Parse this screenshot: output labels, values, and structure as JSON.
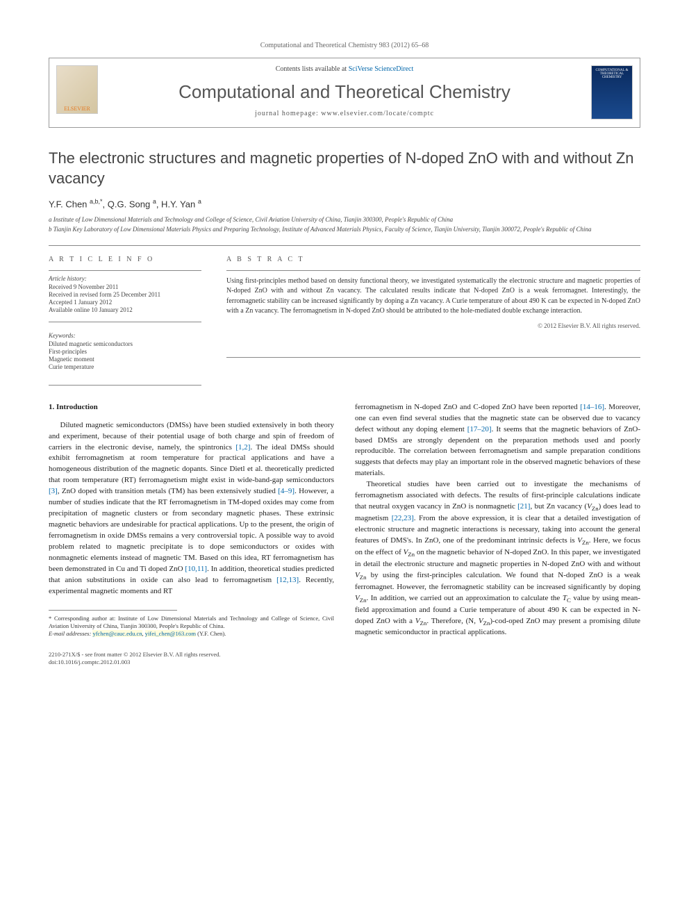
{
  "running_head": "Computational and Theoretical Chemistry 983 (2012) 65–68",
  "header": {
    "contents_prefix": "Contents lists available at ",
    "contents_link": "SciVerse ScienceDirect",
    "journal_title": "Computational and Theoretical Chemistry",
    "homepage_label": "journal homepage: ",
    "homepage_url": "www.elsevier.com/locate/comptc",
    "publisher_logo": "ELSEVIER",
    "cover_text": "COMPUTATIONAL & THEORETICAL CHEMISTRY"
  },
  "article": {
    "title": "The electronic structures and magnetic properties of N-doped ZnO with and without Zn vacancy",
    "authors_html": "Y.F. Chen <sup>a,b,*</sup>, Q.G. Song <sup>a</sup>, H.Y. Yan <sup>a</sup>",
    "affiliations": [
      "a Institute of Low Dimensional Materials and Technology and College of Science, Civil Aviation University of China, Tianjin 300300, People's Republic of China",
      "b Tianjin Key Laboratory of Low Dimensional Materials Physics and Preparing Technology, Institute of Advanced Materials Physics, Faculty of Science, Tianjin University, Tianjin 300072, People's Republic of China"
    ]
  },
  "info": {
    "article_info_heading": "A R T I C L E   I N F O",
    "history_label": "Article history:",
    "history": [
      "Received 9 November 2011",
      "Received in revised form 25 December 2011",
      "Accepted 1 January 2012",
      "Available online 10 January 2012"
    ],
    "keywords_label": "Keywords:",
    "keywords": [
      "Diluted magnetic semiconductors",
      "First-principles",
      "Magnetic moment",
      "Curie temperature"
    ]
  },
  "abstract": {
    "heading": "A B S T R A C T",
    "text": "Using first-principles method based on density functional theory, we investigated systematically the electronic structure and magnetic properties of N-doped ZnO with and without Zn vacancy. The calculated results indicate that N-doped ZnO is a weak ferromagnet. Interestingly, the ferromagnetic stability can be increased significantly by doping a Zn vacancy. A Curie temperature of about 490 K can be expected in N-doped ZnO with a Zn vacancy. The ferromagnetism in N-doped ZnO should be attributed to the hole-mediated double exchange interaction.",
    "copyright": "© 2012 Elsevier B.V. All rights reserved."
  },
  "body": {
    "section1_heading": "1. Introduction",
    "col1_p1": "Diluted magnetic semiconductors (DMSs) have been studied extensively in both theory and experiment, because of their potential usage of both charge and spin of freedom of carriers in the electronic devise, namely, the spintronics [1,2]. The ideal DMSs should exhibit ferromagnetism at room temperature for practical applications and have a homogeneous distribution of the magnetic dopants. Since Dietl et al. theoretically predicted that room temperature (RT) ferromagnetism might exist in wide-band-gap semiconductors [3], ZnO doped with transition metals (TM) has been extensively studied [4–9]. However, a number of studies indicate that the RT ferromagnetism in TM-doped oxides may come from precipitation of magnetic clusters or from secondary magnetic phases. These extrinsic magnetic behaviors are undesirable for practical applications. Up to the present, the origin of ferromagnetism in oxide DMSs remains a very controversial topic. A possible way to avoid problem related to magnetic precipitate is to dope semiconductors or oxides with nonmagnetic elements instead of magnetic TM. Based on this idea, RT ferromagnetism has been demonstrated in Cu and Ti doped ZnO [10,11]. In addition, theoretical studies predicted that anion substitutions in oxide can also lead to ferromagnetism [12,13]. Recently, experimental magnetic moments and RT",
    "col2_p1": "ferromagnetism in N-doped ZnO and C-doped ZnO have been reported [14–16]. Moreover, one can even find several studies that the magnetic state can be observed due to vacancy defect without any doping element [17–20]. It seems that the magnetic behaviors of ZnO-based DMSs are strongly dependent on the preparation methods used and poorly reproducible. The correlation between ferromagnetism and sample preparation conditions suggests that defects may play an important role in the observed magnetic behaviors of these materials.",
    "col2_p2": "Theoretical studies have been carried out to investigate the mechanisms of ferromagnetism associated with defects. The results of first-principle calculations indicate that neutral oxygen vacancy in ZnO is nonmagnetic [21], but Zn vacancy (V_Zn) does lead to magnetism [22,23]. From the above expression, it is clear that a detailed investigation of electronic structure and magnetic interactions is necessary, taking into account the general features of DMS's. In ZnO, one of the predominant intrinsic defects is V_Zn. Here, we focus on the effect of V_Zn on the magnetic behavior of N-doped ZnO. In this paper, we investigated in detail the electronic structure and magnetic properties in N-doped ZnO with and without V_Zn by using the first-principles calculation. We found that N-doped ZnO is a weak ferromagnet. However, the ferromagnetic stability can be increased significantly by doping V_Zn. In addition, we carried out an approximation to calculate the T_C value by using mean-field approximation and found a Curie temperature of about 490 K can be expected in N-doped ZnO with a V_Zn. Therefore, (N, V_Zn)-cod-oped ZnO may present a promising dilute magnetic semiconductor in practical applications."
  },
  "footnotes": {
    "corr": "* Corresponding author at: Institute of Low Dimensional Materials and Technology and College of Science, Civil Aviation University of China, Tianjin 300300, People's Republic of China.",
    "email_label": "E-mail addresses: ",
    "email1": "yfchen@cauc.edu.cn",
    "email_sep": ", ",
    "email2": "yifei_chen@163.com",
    "email_tail": " (Y.F. Chen)."
  },
  "bottom": {
    "line1": "2210-271X/$ - see front matter © 2012 Elsevier B.V. All rights reserved.",
    "line2": "doi:10.1016/j.comptc.2012.01.003"
  },
  "colors": {
    "link": "#0066aa",
    "text": "#333333",
    "highlight": "#fffcdc"
  }
}
